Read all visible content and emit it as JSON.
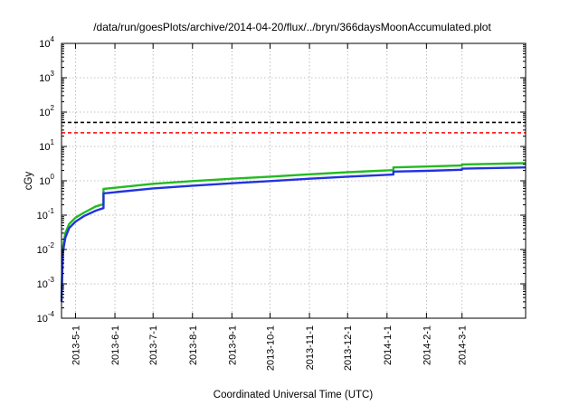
{
  "chart_data": {
    "type": "line",
    "title": "/data/run/goesPlots/archive/2014-04-20/flux/../bryn/366daysMoonAccumulated.plot",
    "xlabel": "Coordinated Universal Time (UTC)",
    "ylabel": "cGy",
    "y_scale": "log",
    "ylim": [
      0.0001,
      10000
    ],
    "xlim": [
      "2013-04-20",
      "2014-04-20"
    ],
    "grid": true,
    "legend": "none",
    "y_ticks": [
      {
        "value": 0.0001,
        "base": "10",
        "exp": "-4"
      },
      {
        "value": 0.001,
        "base": "10",
        "exp": "-3"
      },
      {
        "value": 0.01,
        "base": "10",
        "exp": "-2"
      },
      {
        "value": 0.1,
        "base": "10",
        "exp": "-1"
      },
      {
        "value": 1,
        "base": "10",
        "exp": "0"
      },
      {
        "value": 10,
        "base": "10",
        "exp": "1"
      },
      {
        "value": 100,
        "base": "10",
        "exp": "2"
      },
      {
        "value": 1000,
        "base": "10",
        "exp": "3"
      },
      {
        "value": 10000,
        "base": "10",
        "exp": "4"
      }
    ],
    "x_ticks": [
      "2013-5-1",
      "2013-6-1",
      "2013-7-1",
      "2013-8-1",
      "2013-9-1",
      "2013-10-1",
      "2013-11-1",
      "2013-12-1",
      "2014-1-1",
      "2014-2-1",
      "2014-3-1"
    ],
    "x_tick_dates": [
      "2013-05-01",
      "2013-06-01",
      "2013-07-01",
      "2013-08-01",
      "2013-09-01",
      "2013-10-01",
      "2013-11-01",
      "2013-12-01",
      "2014-01-01",
      "2014-02-01",
      "2014-03-01"
    ],
    "reference_lines": [
      {
        "y": 50,
        "color": "#000000",
        "style": "dashed"
      },
      {
        "y": 25,
        "color": "#ff0000",
        "style": "dashed"
      }
    ],
    "series": [
      {
        "color": "#22bb22",
        "points": [
          [
            "2013-04-20",
            0.0004
          ],
          [
            "2013-04-21",
            0.011
          ],
          [
            "2013-04-23",
            0.03
          ],
          [
            "2013-04-26",
            0.055
          ],
          [
            "2013-05-01",
            0.085
          ],
          [
            "2013-05-08",
            0.12
          ],
          [
            "2013-05-17",
            0.18
          ],
          [
            "2013-05-23",
            0.21
          ],
          [
            "2013-05-23",
            0.58
          ],
          [
            "2013-07-01",
            0.82
          ],
          [
            "2013-08-01",
            0.98
          ],
          [
            "2013-09-01",
            1.15
          ],
          [
            "2013-10-01",
            1.32
          ],
          [
            "2013-11-01",
            1.55
          ],
          [
            "2013-12-01",
            1.78
          ],
          [
            "2014-01-06",
            2.05
          ],
          [
            "2014-01-06",
            2.45
          ],
          [
            "2014-02-01",
            2.6
          ],
          [
            "2014-03-01",
            2.8
          ],
          [
            "2014-03-01",
            3.0
          ],
          [
            "2014-04-20",
            3.25
          ]
        ]
      },
      {
        "color": "#2233dd",
        "points": [
          [
            "2013-04-20",
            0.0003
          ],
          [
            "2013-04-21",
            0.008
          ],
          [
            "2013-04-23",
            0.022
          ],
          [
            "2013-04-26",
            0.042
          ],
          [
            "2013-05-01",
            0.065
          ],
          [
            "2013-05-08",
            0.095
          ],
          [
            "2013-05-17",
            0.135
          ],
          [
            "2013-05-23",
            0.16
          ],
          [
            "2013-05-23",
            0.43
          ],
          [
            "2013-07-01",
            0.6
          ],
          [
            "2013-08-01",
            0.72
          ],
          [
            "2013-09-01",
            0.85
          ],
          [
            "2013-10-01",
            0.98
          ],
          [
            "2013-11-01",
            1.15
          ],
          [
            "2013-12-01",
            1.32
          ],
          [
            "2014-01-06",
            1.52
          ],
          [
            "2014-01-06",
            1.85
          ],
          [
            "2014-02-01",
            1.95
          ],
          [
            "2014-03-01",
            2.1
          ],
          [
            "2014-03-01",
            2.25
          ],
          [
            "2014-04-20",
            2.45
          ]
        ]
      }
    ]
  }
}
